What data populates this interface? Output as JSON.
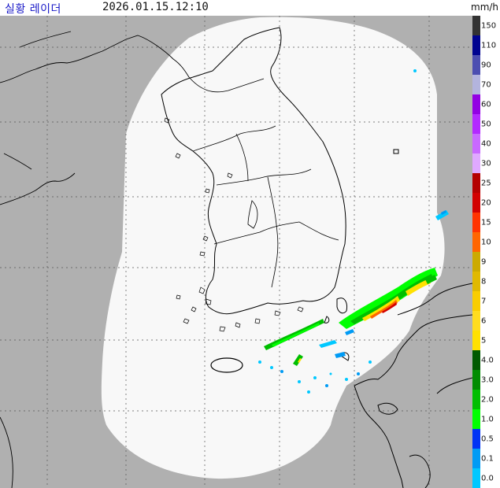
{
  "header": {
    "title": "실황 레이더",
    "timestamp": "2026.01.15.12:10",
    "unit": "mm/h"
  },
  "legend": {
    "labels": [
      "150",
      "110",
      "90",
      "70",
      "60",
      "50",
      "40",
      "30",
      "25",
      "20",
      "15",
      "10",
      "9",
      "8",
      "7",
      "6",
      "5",
      "4.0",
      "3.0",
      "2.0",
      "1.0",
      "0.5",
      "0.1",
      "0.0"
    ],
    "colors": [
      "#333333",
      "#000390",
      "#4c4eb1",
      "#b3b4de",
      "#9300e4",
      "#b329ff",
      "#c969ff",
      "#e0a9ff",
      "#b40000",
      "#d20000",
      "#ff3300",
      "#ff6600",
      "#ccaa00",
      "#e0b900",
      "#f9cd00",
      "#ffdc1f",
      "#ffe100",
      "#005a00",
      "#008c00",
      "#00be00",
      "#00ff00",
      "#0033f5",
      "#009bf5",
      "#00c8ff"
    ]
  },
  "map": {
    "colors": {
      "background": "#b0b0b0",
      "coverage": "#f8f8f8",
      "land_outline": "#000000",
      "grid": "#555555"
    },
    "rain_bands": [
      {
        "name": "southeast-sea-band",
        "intensity_mm_h": [
          "0.5",
          "1.0",
          "2.0",
          "5",
          "10",
          "15"
        ]
      },
      {
        "name": "south-sea-band",
        "intensity_mm_h": [
          "0.1",
          "0.5",
          "1.0"
        ]
      },
      {
        "name": "east-sea-echo",
        "intensity_mm_h": [
          "0.1",
          "0.5"
        ]
      }
    ]
  }
}
